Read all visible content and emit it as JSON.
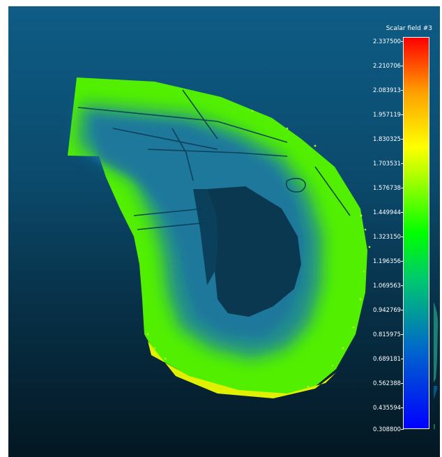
{
  "viewport": {
    "background_top": "#0e5c86",
    "background_bottom": "#041722"
  },
  "scalar_field": {
    "title": "Scalar field #3",
    "ticks": [
      "2.337500",
      "2.210706",
      "2.083913",
      "1.957119",
      "1.830325",
      "1.703531",
      "1.576738",
      "1.449944",
      "1.323150",
      "1.196356",
      "1.069563",
      "0.942769",
      "0.815975",
      "0.689181",
      "0.562388",
      "0.435594",
      "0.308800"
    ],
    "min": 0.3088,
    "max": 2.3375,
    "color_ramp": [
      "#0000ff",
      "#0066cc",
      "#00c870",
      "#00ff00",
      "#a8ff00",
      "#ffff00",
      "#ffa000",
      "#ff0000"
    ]
  }
}
